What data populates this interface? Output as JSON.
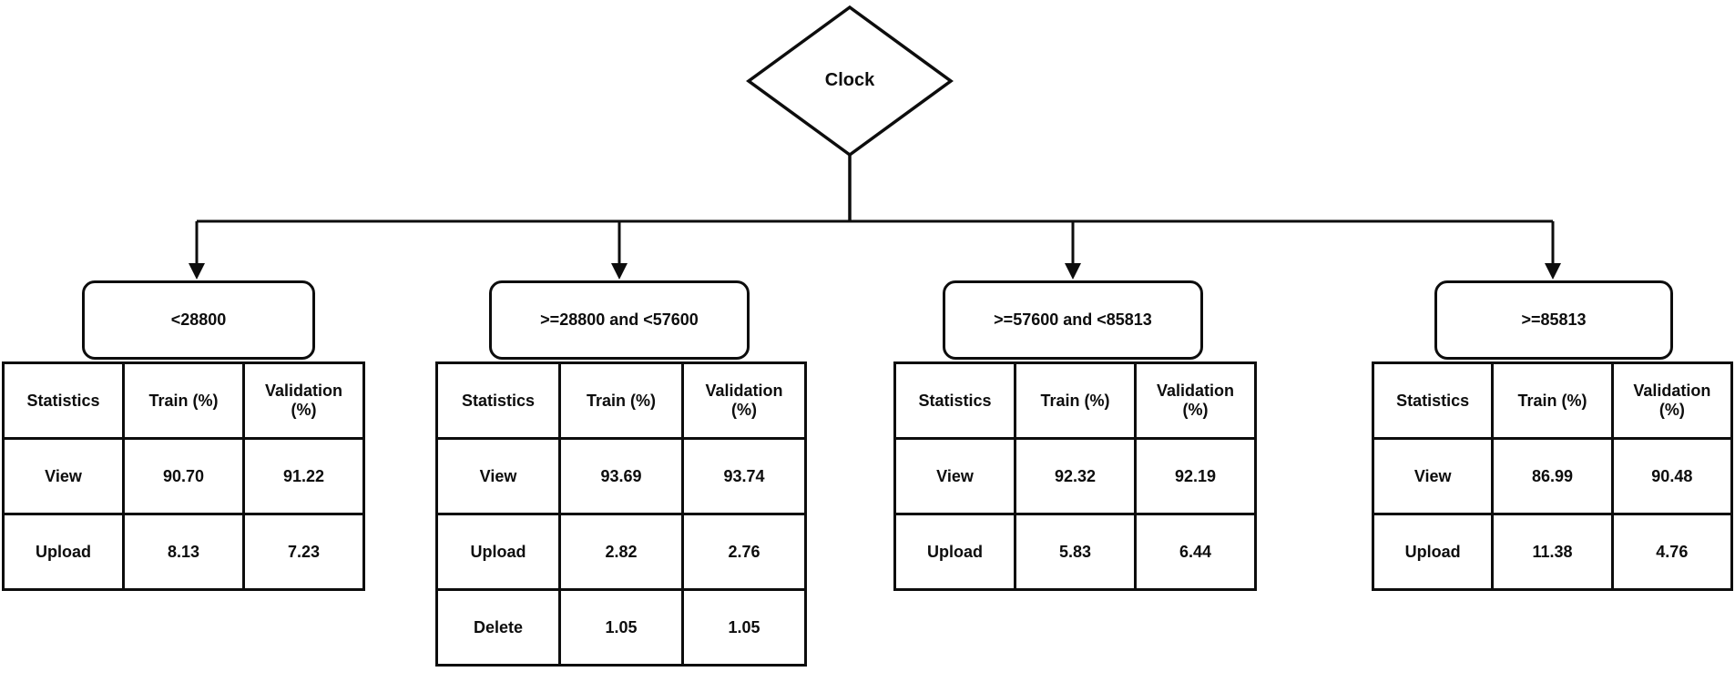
{
  "diagram": {
    "type": "decision-tree",
    "colors": {
      "line": "#0d0d0d",
      "background": "#ffffff"
    },
    "root": {
      "label": "Clock",
      "shape": "diamond"
    },
    "table_headers": [
      "Statistics",
      "Train (%)",
      "Validation (%)"
    ],
    "branches": [
      {
        "condition": "<28800",
        "rows": [
          [
            "View",
            "90.70",
            "91.22"
          ],
          [
            "Upload",
            "8.13",
            "7.23"
          ]
        ]
      },
      {
        "condition": ">=28800 and <57600",
        "rows": [
          [
            "View",
            "93.69",
            "93.74"
          ],
          [
            "Upload",
            "2.82",
            "2.76"
          ],
          [
            "Delete",
            "1.05",
            "1.05"
          ]
        ]
      },
      {
        "condition": ">=57600 and <85813",
        "rows": [
          [
            "View",
            "92.32",
            "92.19"
          ],
          [
            "Upload",
            "5.83",
            "6.44"
          ]
        ]
      },
      {
        "condition": ">=85813",
        "rows": [
          [
            "View",
            "86.99",
            "90.48"
          ],
          [
            "Upload",
            "11.38",
            "4.76"
          ]
        ]
      }
    ]
  }
}
